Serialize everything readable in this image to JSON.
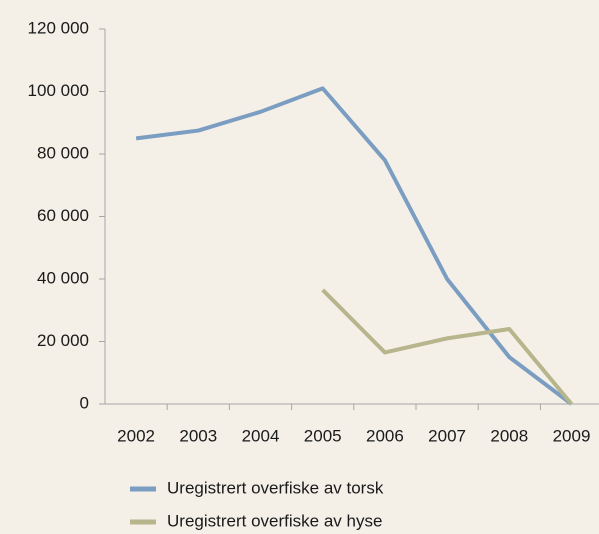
{
  "chart_data": {
    "type": "line",
    "categories": [
      "2002",
      "2003",
      "2004",
      "2005",
      "2006",
      "2007",
      "2008",
      "2009"
    ],
    "series": [
      {
        "name": "Uregistrert overfiske av torsk",
        "color": "#7b9dc2",
        "values": [
          85000,
          87500,
          93500,
          101000,
          78000,
          40000,
          15000,
          0
        ]
      },
      {
        "name": "Uregistrert overfiske av hyse",
        "color": "#b6b58b",
        "values": [
          null,
          null,
          null,
          36500,
          16500,
          21000,
          24000,
          0
        ]
      }
    ],
    "ylim": [
      0,
      120000
    ],
    "yticks": [
      {
        "value": 0,
        "label": "0"
      },
      {
        "value": 20000,
        "label": "20 000"
      },
      {
        "value": 40000,
        "label": "40 000"
      },
      {
        "value": 60000,
        "label": "60 000"
      },
      {
        "value": 80000,
        "label": "80 000"
      },
      {
        "value": 100000,
        "label": "100 000"
      },
      {
        "value": 120000,
        "label": "120 000"
      }
    ],
    "grid": false
  }
}
